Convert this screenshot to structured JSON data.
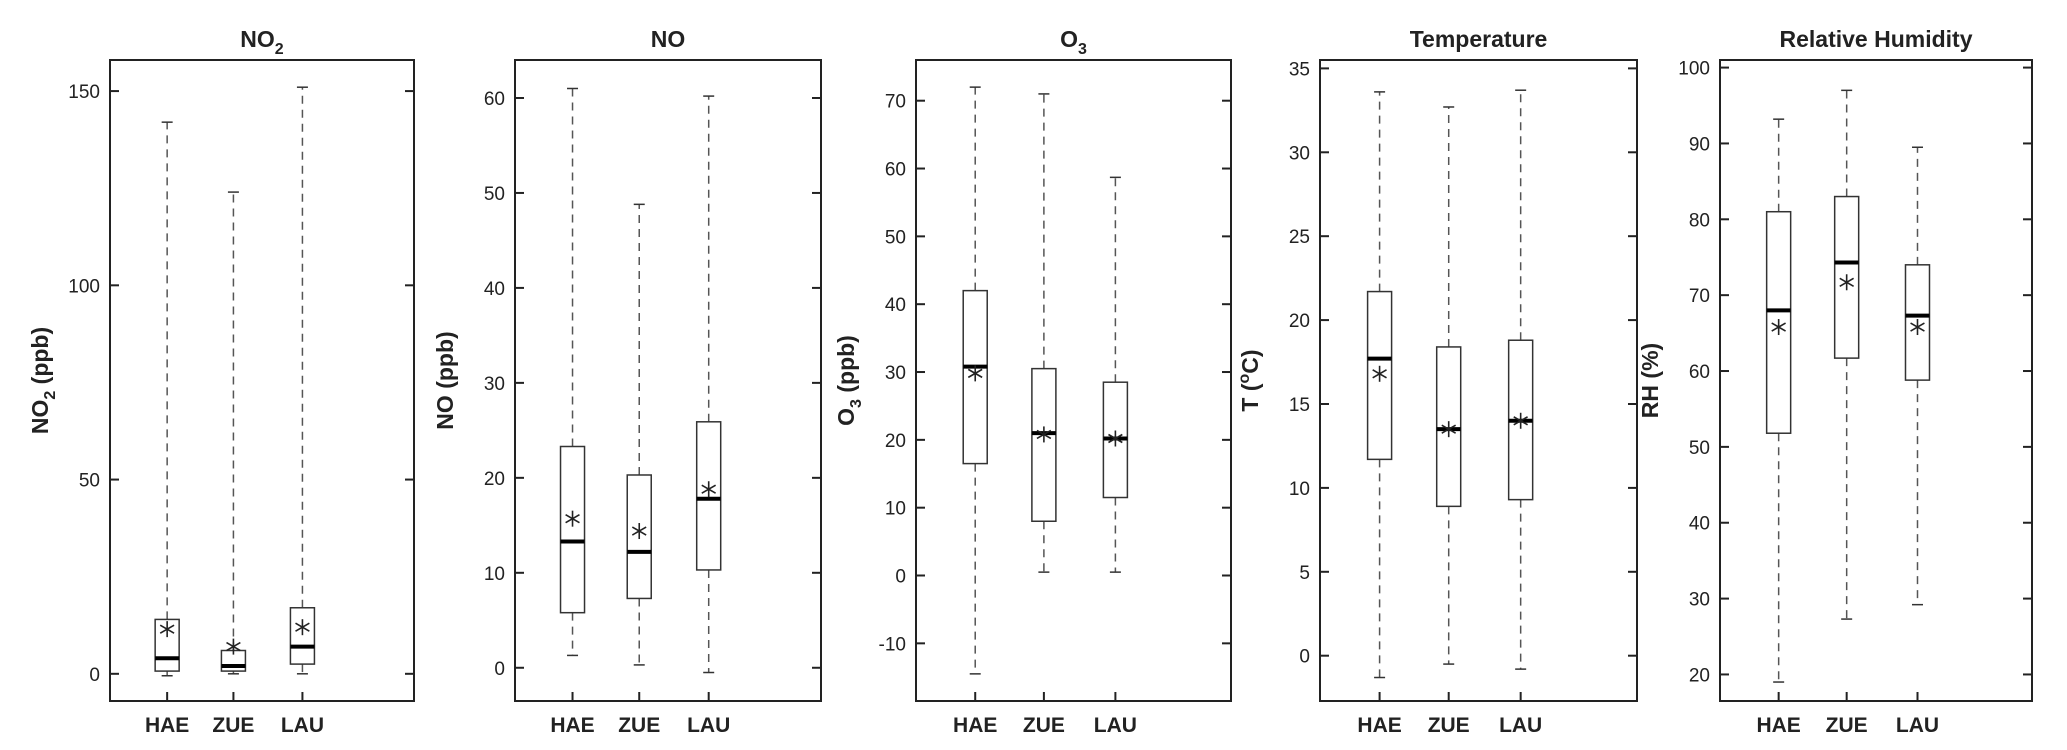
{
  "chart_data": [
    {
      "type": "box",
      "title": "NO",
      "title_sub": "2",
      "ylabel": "NO",
      "ylabel_sub": "2",
      "ylabel_rest": " (ppb)",
      "ylim": [
        -7,
        158
      ],
      "yticks": [
        0,
        50,
        100,
        150
      ],
      "ytick_labels": [
        "0",
        "50",
        "100",
        "150"
      ],
      "categories": [
        "HAE",
        "ZUE",
        "LAU"
      ],
      "boxes": [
        {
          "min": -0.5,
          "q1": 0.7,
          "median": 4,
          "q3": 14,
          "max": 142,
          "mean": 11.5
        },
        {
          "min": 0,
          "q1": 0.7,
          "median": 2,
          "q3": 6,
          "max": 124,
          "mean": 7
        },
        {
          "min": 0,
          "q1": 2.5,
          "median": 7,
          "q3": 17,
          "max": 151,
          "mean": 12
        }
      ]
    },
    {
      "type": "box",
      "title": "NO",
      "title_sub": "",
      "ylabel": "NO",
      "ylabel_sub": "",
      "ylabel_rest": " (ppb)",
      "ylim": [
        -3.5,
        64
      ],
      "yticks": [
        0,
        10,
        20,
        30,
        40,
        50,
        60
      ],
      "ytick_labels": [
        "0",
        "10",
        "20",
        "30",
        "40",
        "50",
        "60"
      ],
      "categories": [
        "HAE",
        "ZUE",
        "LAU"
      ],
      "boxes": [
        {
          "min": 1.3,
          "q1": 5.8,
          "median": 13.3,
          "q3": 23.3,
          "max": 61,
          "mean": 15.7
        },
        {
          "min": 0.3,
          "q1": 7.3,
          "median": 12.2,
          "q3": 20.3,
          "max": 48.8,
          "mean": 14.4
        },
        {
          "min": -0.5,
          "q1": 10.3,
          "median": 17.8,
          "q3": 25.9,
          "max": 60.2,
          "mean": 18.8
        }
      ]
    },
    {
      "type": "box",
      "title": "O",
      "title_sub": "3",
      "ylabel": "O",
      "ylabel_sub": "3",
      "ylabel_rest": " (ppb)",
      "ylim": [
        -18.5,
        76
      ],
      "yticks": [
        -10,
        0,
        10,
        20,
        30,
        40,
        50,
        60,
        70
      ],
      "ytick_labels": [
        "-10",
        "0",
        "10",
        "20",
        "30",
        "40",
        "50",
        "60",
        "70"
      ],
      "categories": [
        "HAE",
        "ZUE",
        "LAU"
      ],
      "boxes": [
        {
          "min": -14.5,
          "q1": 16.5,
          "median": 30.8,
          "q3": 42,
          "max": 72,
          "mean": 29.8
        },
        {
          "min": 0.5,
          "q1": 8,
          "median": 21,
          "q3": 30.5,
          "max": 71,
          "mean": 20.8
        },
        {
          "min": 0.5,
          "q1": 11.5,
          "median": 20.2,
          "q3": 28.5,
          "max": 58.7,
          "mean": 20.2
        }
      ]
    },
    {
      "type": "box",
      "title": "Temperature",
      "title_sub": "",
      "ylabel": "T (",
      "ylabel_sup": "o",
      "ylabel_rest": "C)",
      "ylim": [
        -2.7,
        35.5
      ],
      "yticks": [
        0,
        5,
        10,
        15,
        20,
        25,
        30,
        35
      ],
      "ytick_labels": [
        "0",
        "5",
        "10",
        "15",
        "20",
        "25",
        "30",
        "35"
      ],
      "categories": [
        "HAE",
        "ZUE",
        "LAU"
      ],
      "boxes": [
        {
          "min": -1.3,
          "q1": 11.7,
          "median": 17.7,
          "q3": 21.7,
          "max": 33.6,
          "mean": 16.8
        },
        {
          "min": -0.5,
          "q1": 8.9,
          "median": 13.5,
          "q3": 18.4,
          "max": 32.7,
          "mean": 13.5
        },
        {
          "min": -0.8,
          "q1": 9.3,
          "median": 14,
          "q3": 18.8,
          "max": 33.7,
          "mean": 14
        }
      ]
    },
    {
      "type": "box",
      "title": "Relative Humidity",
      "title_sub": "",
      "ylabel": "RH (%)",
      "ylabel_sub": "",
      "ylabel_rest": "",
      "ylim": [
        16.5,
        101
      ],
      "yticks": [
        20,
        30,
        40,
        50,
        60,
        70,
        80,
        90,
        100
      ],
      "ytick_labels": [
        "20",
        "30",
        "40",
        "50",
        "60",
        "70",
        "80",
        "90",
        "100"
      ],
      "categories": [
        "HAE",
        "ZUE",
        "LAU"
      ],
      "boxes": [
        {
          "min": 19,
          "q1": 51.8,
          "median": 68,
          "q3": 81,
          "max": 93.2,
          "mean": 65.8
        },
        {
          "min": 27.3,
          "q1": 61.7,
          "median": 74.3,
          "q3": 83,
          "max": 97,
          "mean": 71.7
        },
        {
          "min": 29.2,
          "q1": 58.8,
          "median": 67.3,
          "q3": 74,
          "max": 89.5,
          "mean": 65.8
        }
      ]
    }
  ]
}
